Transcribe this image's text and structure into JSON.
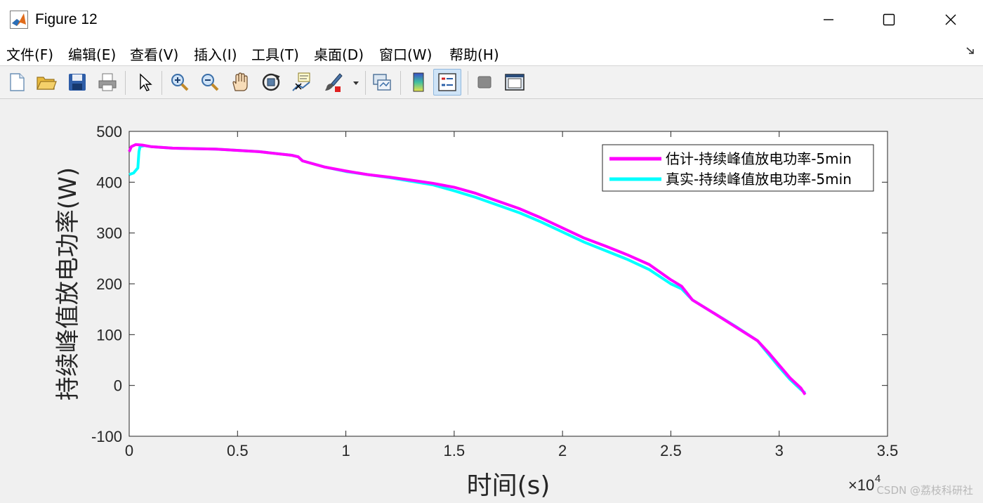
{
  "window": {
    "title": "Figure 12",
    "icon": "matlab-icon",
    "controls": [
      "minimize-icon",
      "maximize-icon",
      "close-icon"
    ]
  },
  "menu": {
    "items": [
      "文件(F)",
      "编辑(E)",
      "查看(V)",
      "插入(I)",
      "工具(T)",
      "桌面(D)",
      "窗口(W)",
      "帮助(H)"
    ],
    "dock_icon": "dock-arrow-icon"
  },
  "toolbar": {
    "icons": [
      "new-figure-icon",
      "open-file-icon",
      "save-icon",
      "print-icon",
      "select-arrow-icon",
      "zoom-in-icon",
      "zoom-out-icon",
      "pan-hand-icon",
      "rotate-3d-icon",
      "data-cursor-icon",
      "brush-icon",
      "brush-dropdown-icon",
      "link-plot-icon",
      "colorbar-icon",
      "legend-icon",
      "hide-plot-tools-icon",
      "show-plot-tools-icon"
    ],
    "active": "legend-icon"
  },
  "watermark": "CSDN @荔枝科研社",
  "chart_data": {
    "type": "line",
    "xlabel": "时间(s)",
    "ylabel": "持续峰值放电功率(W)",
    "x_exponent_label": "×10",
    "x_exponent_power": "4",
    "xlim": [
      0,
      35000
    ],
    "ylim": [
      -100,
      500
    ],
    "xticks": [
      0,
      5000,
      10000,
      15000,
      20000,
      25000,
      30000,
      35000
    ],
    "xtick_labels": [
      "0",
      "0.5",
      "1",
      "1.5",
      "2",
      "2.5",
      "3",
      "3.5"
    ],
    "yticks": [
      -100,
      0,
      100,
      200,
      300,
      400,
      500
    ],
    "ytick_labels": [
      "-100",
      "0",
      "100",
      "200",
      "300",
      "400",
      "500"
    ],
    "grid": false,
    "legend_position": "top-right",
    "series": [
      {
        "name": "估计-持续峰值放电功率-5min",
        "color": "#ff00ff",
        "x": [
          0,
          100,
          300,
          600,
          1000,
          2000,
          4000,
          6000,
          7500,
          7800,
          8000,
          9000,
          10000,
          11000,
          12000,
          13000,
          14000,
          15000,
          16000,
          17000,
          18000,
          19000,
          20000,
          21000,
          22000,
          23000,
          24000,
          25000,
          25500,
          26000,
          27000,
          28000,
          29000,
          29500,
          30000,
          30500,
          31000,
          31200
        ],
        "values": [
          460,
          470,
          474,
          473,
          470,
          467,
          465,
          460,
          453,
          450,
          442,
          430,
          422,
          415,
          410,
          404,
          398,
          390,
          378,
          363,
          348,
          330,
          310,
          290,
          274,
          257,
          238,
          208,
          195,
          168,
          142,
          115,
          88,
          65,
          40,
          15,
          -5,
          -18
        ]
      },
      {
        "name": "真实-持续峰值放电功率-5min",
        "color": "#00ffff",
        "x": [
          0,
          200,
          400,
          450,
          500,
          700,
          1000,
          2000,
          4000,
          6000,
          7500,
          7800,
          8000,
          9000,
          10000,
          11000,
          12000,
          13000,
          14000,
          15000,
          16000,
          17000,
          18000,
          19000,
          20000,
          21000,
          22000,
          23000,
          24000,
          25000,
          25500,
          26000,
          27000,
          28000,
          29000,
          29500,
          30000,
          30500,
          31000,
          31200
        ],
        "values": [
          415,
          418,
          428,
          460,
          470,
          472,
          470,
          467,
          465,
          460,
          453,
          450,
          442,
          430,
          421,
          415,
          409,
          402,
          395,
          383,
          370,
          355,
          340,
          322,
          302,
          282,
          265,
          248,
          228,
          200,
          190,
          168,
          142,
          116,
          88,
          62,
          36,
          12,
          -8,
          -15
        ]
      }
    ]
  }
}
